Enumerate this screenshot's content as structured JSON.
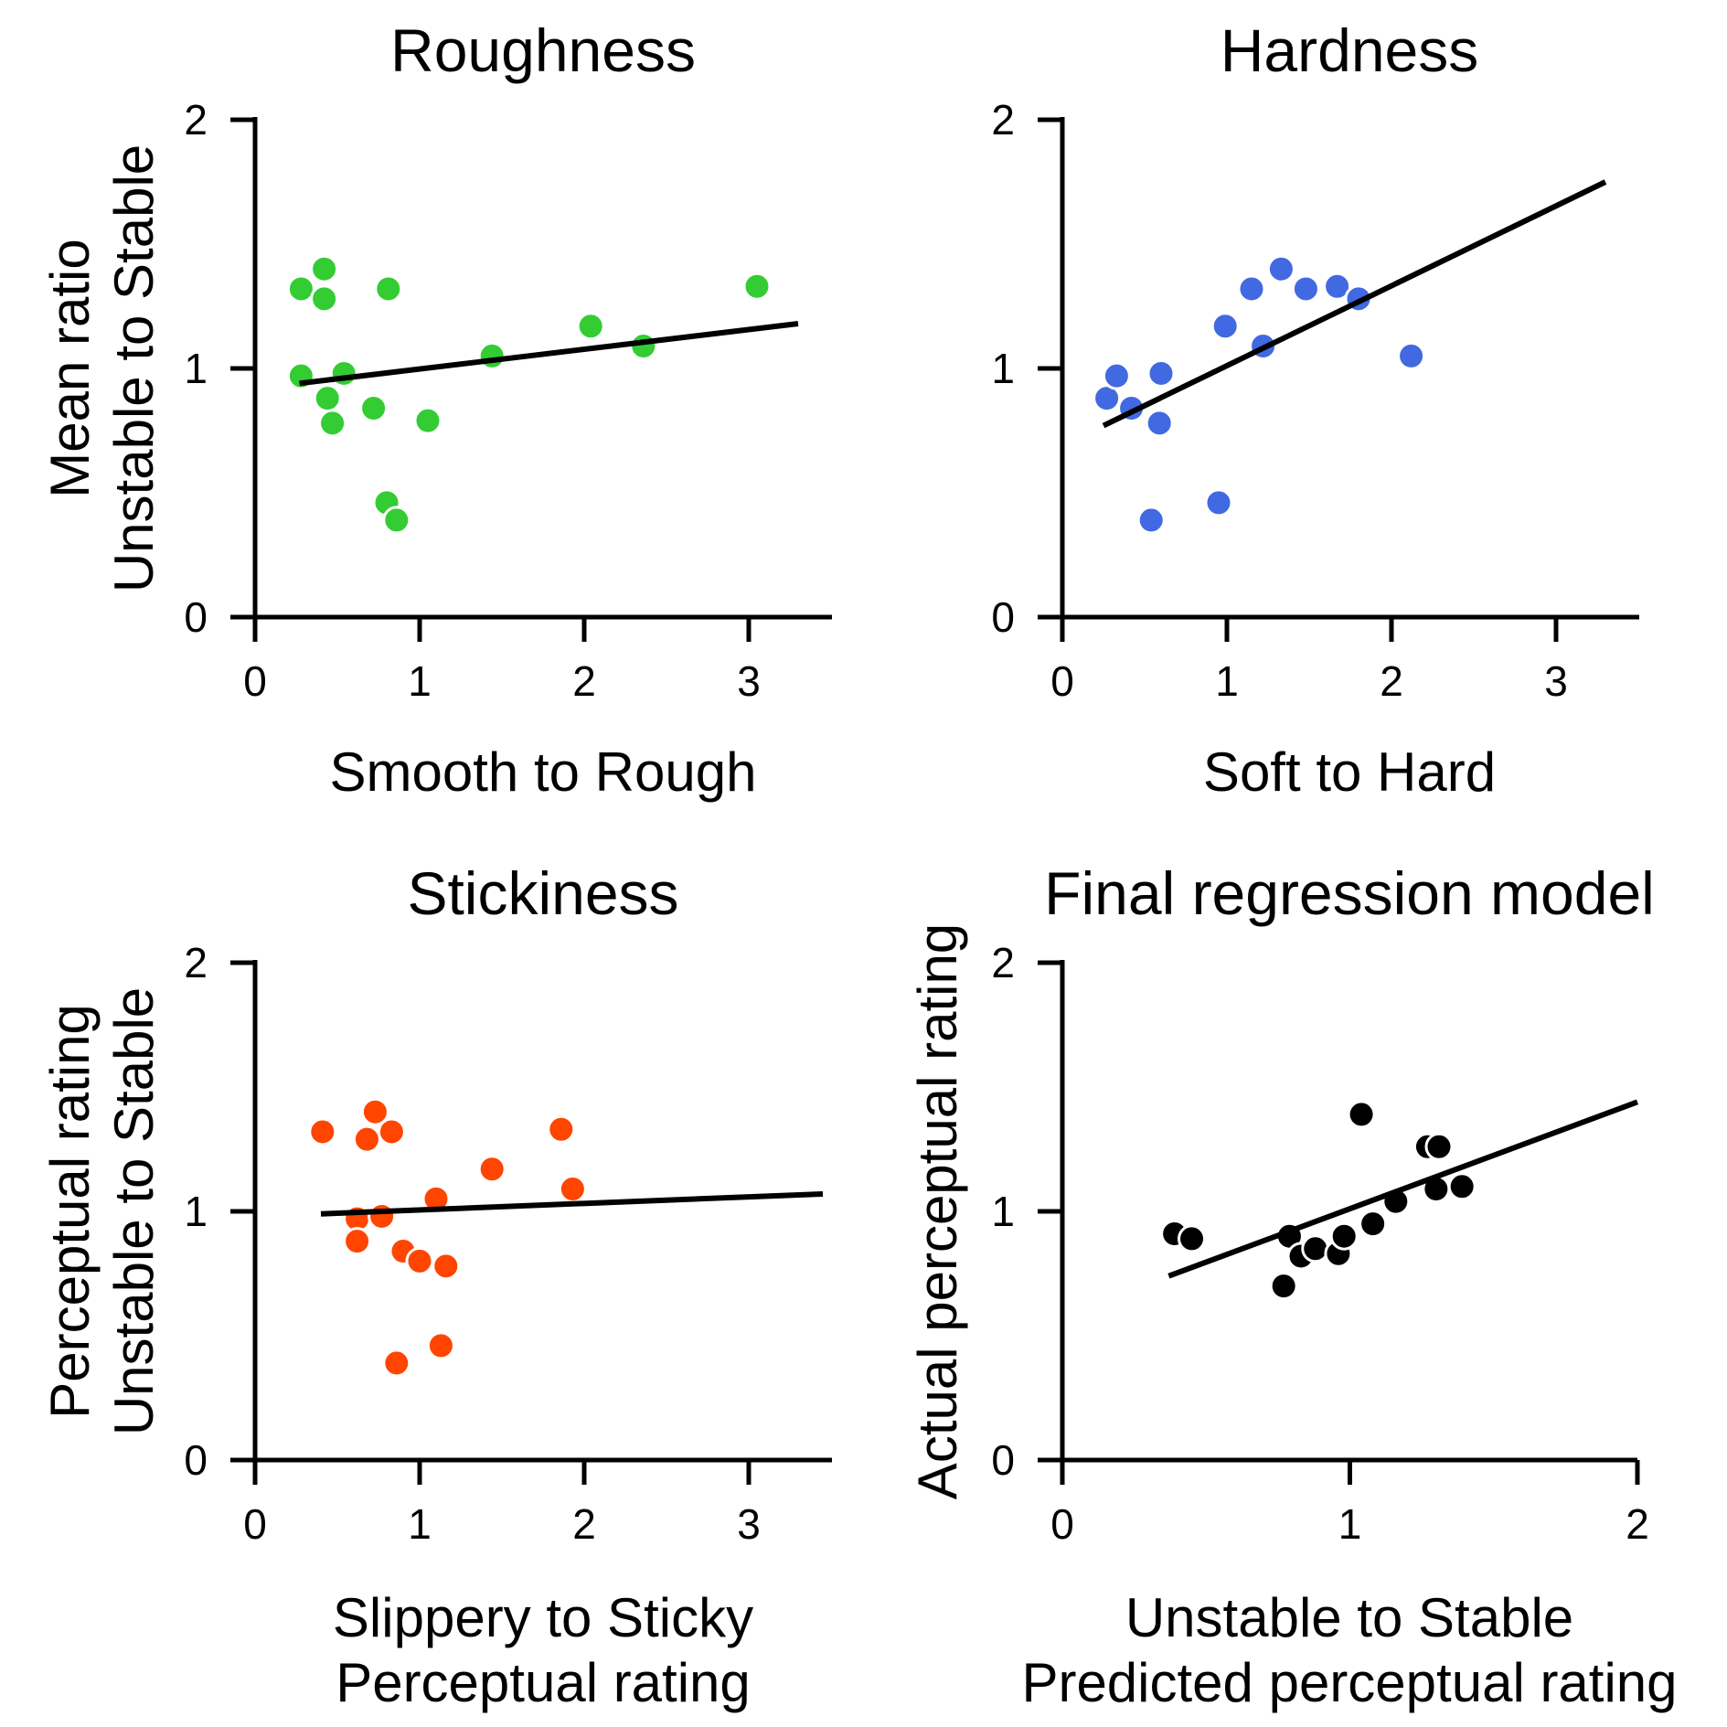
{
  "chart_data": [
    {
      "type": "scatter",
      "title": "Roughness",
      "xlabel": [
        "Smooth to Rough"
      ],
      "ylabel": [
        "Mean ratio",
        "Unstable to Stable"
      ],
      "xlim": [
        0,
        3.5
      ],
      "ylim": [
        0,
        2
      ],
      "xticks": [
        "0",
        "1",
        "2",
        "3"
      ],
      "yticks": [
        "0",
        "1",
        "2"
      ],
      "color": "#33cc33",
      "points": [
        {
          "x": 0.28,
          "y": 1.32
        },
        {
          "x": 0.42,
          "y": 1.4
        },
        {
          "x": 0.42,
          "y": 1.28
        },
        {
          "x": 0.81,
          "y": 1.32
        },
        {
          "x": 0.28,
          "y": 0.97
        },
        {
          "x": 0.54,
          "y": 0.98
        },
        {
          "x": 0.44,
          "y": 0.88
        },
        {
          "x": 0.47,
          "y": 0.78
        },
        {
          "x": 0.72,
          "y": 0.84
        },
        {
          "x": 1.05,
          "y": 0.79
        },
        {
          "x": 0.8,
          "y": 0.46
        },
        {
          "x": 0.86,
          "y": 0.39
        },
        {
          "x": 1.44,
          "y": 1.05
        },
        {
          "x": 2.04,
          "y": 1.17
        },
        {
          "x": 2.36,
          "y": 1.09
        },
        {
          "x": 3.05,
          "y": 1.33
        }
      ],
      "fit": {
        "x": [
          0.27,
          3.3
        ],
        "y": [
          0.94,
          1.18
        ]
      }
    },
    {
      "type": "scatter",
      "title": "Hardness",
      "xlabel": [
        "Soft to Hard"
      ],
      "ylabel": [],
      "xlim": [
        0,
        3.5
      ],
      "ylim": [
        0,
        2
      ],
      "xticks": [
        "0",
        "1",
        "2",
        "3"
      ],
      "yticks": [
        "0",
        "1",
        "2"
      ],
      "color": "#4169e1",
      "points": [
        {
          "x": 0.27,
          "y": 0.88
        },
        {
          "x": 0.33,
          "y": 0.97
        },
        {
          "x": 0.42,
          "y": 0.84
        },
        {
          "x": 0.6,
          "y": 0.98
        },
        {
          "x": 0.59,
          "y": 0.78
        },
        {
          "x": 0.54,
          "y": 0.39
        },
        {
          "x": 0.95,
          "y": 0.46
        },
        {
          "x": 0.99,
          "y": 1.17
        },
        {
          "x": 1.15,
          "y": 1.32
        },
        {
          "x": 1.22,
          "y": 1.09
        },
        {
          "x": 1.33,
          "y": 1.4
        },
        {
          "x": 1.48,
          "y": 1.32
        },
        {
          "x": 1.67,
          "y": 1.33
        },
        {
          "x": 1.8,
          "y": 1.28
        },
        {
          "x": 2.12,
          "y": 1.05
        }
      ],
      "fit": {
        "x": [
          0.25,
          3.3
        ],
        "y": [
          0.77,
          1.75
        ]
      }
    },
    {
      "type": "scatter",
      "title": "Stickiness",
      "xlabel": [
        "Slippery to Sticky",
        "Perceptual rating"
      ],
      "ylabel": [
        "Perceptual rating",
        "Unstable to Stable"
      ],
      "xlim": [
        0,
        3.5
      ],
      "ylim": [
        0,
        2
      ],
      "xticks": [
        "0",
        "1",
        "2",
        "3"
      ],
      "yticks": [
        "0",
        "1",
        "2"
      ],
      "color": "#ff4500",
      "points": [
        {
          "x": 0.41,
          "y": 1.32
        },
        {
          "x": 0.73,
          "y": 1.4
        },
        {
          "x": 0.68,
          "y": 1.29
        },
        {
          "x": 0.83,
          "y": 1.32
        },
        {
          "x": 0.62,
          "y": 0.97
        },
        {
          "x": 0.77,
          "y": 0.98
        },
        {
          "x": 0.62,
          "y": 0.88
        },
        {
          "x": 0.9,
          "y": 0.84
        },
        {
          "x": 1.0,
          "y": 0.8
        },
        {
          "x": 1.16,
          "y": 0.78
        },
        {
          "x": 1.1,
          "y": 1.05
        },
        {
          "x": 0.86,
          "y": 0.39
        },
        {
          "x": 1.13,
          "y": 0.46
        },
        {
          "x": 1.44,
          "y": 1.17
        },
        {
          "x": 1.86,
          "y": 1.33
        },
        {
          "x": 1.93,
          "y": 1.09
        }
      ],
      "fit": {
        "x": [
          0.4,
          3.45
        ],
        "y": [
          0.99,
          1.07
        ]
      }
    },
    {
      "type": "scatter",
      "title": "Final regression model",
      "xlabel": [
        "Unstable to Stable",
        "Predicted perceptual rating"
      ],
      "ylabel": [
        "Actual perceptual rating"
      ],
      "xlim": [
        0,
        2
      ],
      "ylim": [
        0,
        2
      ],
      "xticks": [
        "0",
        "1",
        "2"
      ],
      "yticks": [
        "0",
        "1",
        "2"
      ],
      "color": "#000000",
      "points": [
        {
          "x": 0.39,
          "y": 0.91
        },
        {
          "x": 0.45,
          "y": 0.89
        },
        {
          "x": 0.79,
          "y": 0.9
        },
        {
          "x": 0.83,
          "y": 0.82
        },
        {
          "x": 0.88,
          "y": 0.85
        },
        {
          "x": 0.77,
          "y": 0.7
        },
        {
          "x": 0.96,
          "y": 0.83
        },
        {
          "x": 0.98,
          "y": 0.9
        },
        {
          "x": 1.08,
          "y": 0.95
        },
        {
          "x": 1.04,
          "y": 1.39
        },
        {
          "x": 1.16,
          "y": 1.04
        },
        {
          "x": 1.27,
          "y": 1.26
        },
        {
          "x": 1.31,
          "y": 1.26
        },
        {
          "x": 1.3,
          "y": 1.09
        },
        {
          "x": 1.39,
          "y": 1.1
        }
      ],
      "fit": {
        "x": [
          0.37,
          2.0
        ],
        "y": [
          0.74,
          1.44
        ]
      }
    }
  ]
}
